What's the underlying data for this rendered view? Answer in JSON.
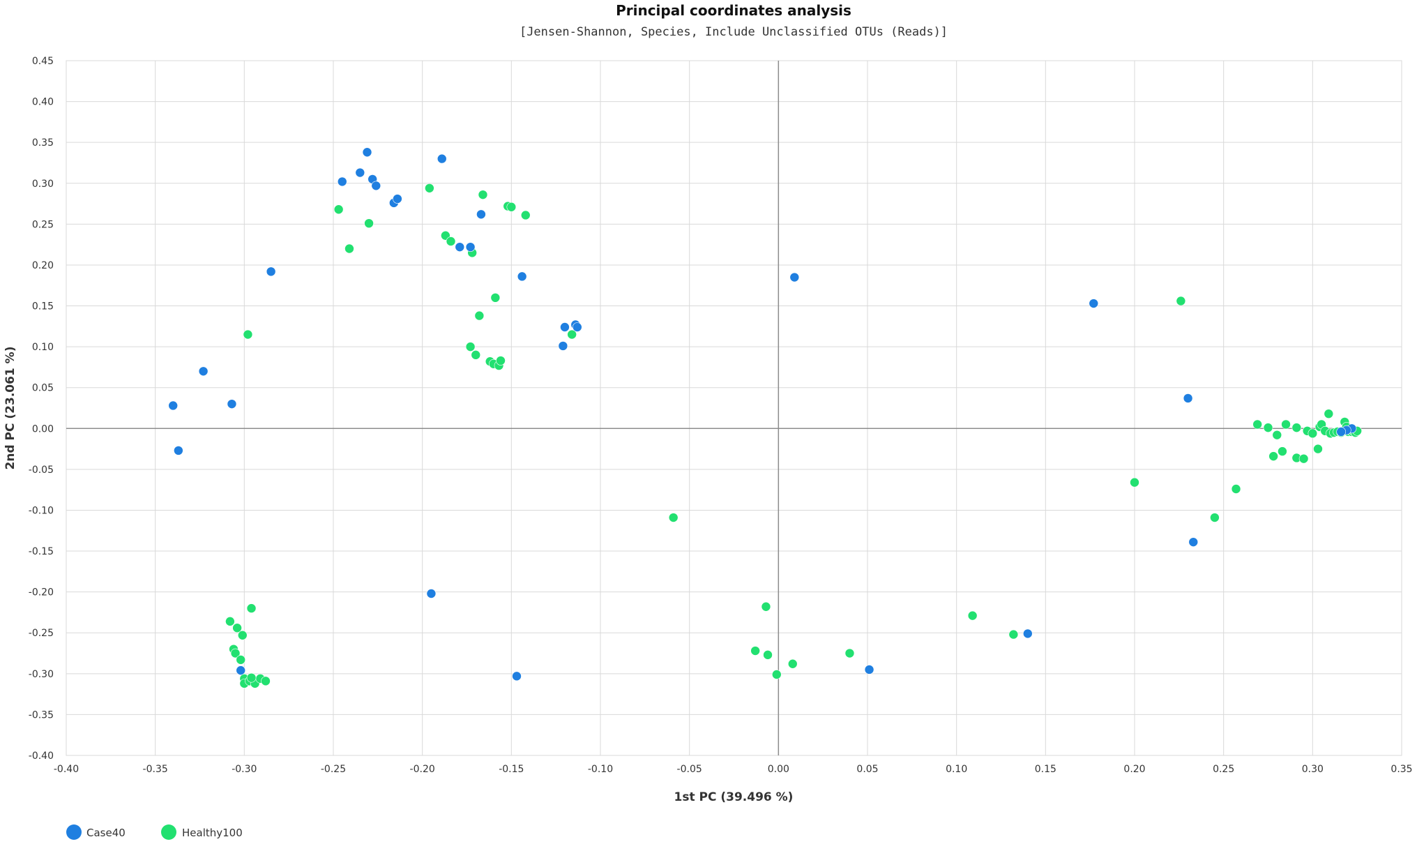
{
  "chart_data": {
    "type": "scatter",
    "title": "Principal coordinates analysis",
    "subtitle": "[Jensen-Shannon, Species, Include Unclassified OTUs (Reads)]",
    "xlabel": "1st PC (39.496 %)",
    "ylabel": "2nd PC (23.061 %)",
    "xlim": [
      -0.4,
      0.35
    ],
    "ylim": [
      -0.4,
      0.45
    ],
    "x_ticks": [
      "-0.40",
      "-0.35",
      "-0.30",
      "-0.25",
      "-0.20",
      "-0.15",
      "-0.10",
      "-0.05",
      "0.00",
      "0.05",
      "0.10",
      "0.15",
      "0.20",
      "0.25",
      "0.30",
      "0.35"
    ],
    "y_ticks": [
      "0.45",
      "0.40",
      "0.35",
      "0.30",
      "0.25",
      "0.20",
      "0.15",
      "0.10",
      "0.05",
      "0.00",
      "-0.05",
      "-0.10",
      "-0.15",
      "-0.20",
      "-0.25",
      "-0.30",
      "-0.35",
      "-0.40"
    ],
    "grid": true,
    "legend_position": "bottom-left",
    "series": [
      {
        "name": "Case40",
        "color": "#1f7fe0",
        "points": [
          [
            -0.34,
            0.028
          ],
          [
            -0.337,
            -0.027
          ],
          [
            -0.323,
            0.07
          ],
          [
            -0.307,
            0.03
          ],
          [
            -0.285,
            0.192
          ],
          [
            -0.302,
            -0.296
          ],
          [
            -0.245,
            0.302
          ],
          [
            -0.231,
            0.338
          ],
          [
            -0.235,
            0.313
          ],
          [
            -0.228,
            0.305
          ],
          [
            -0.226,
            0.297
          ],
          [
            -0.216,
            0.276
          ],
          [
            -0.214,
            0.281
          ],
          [
            -0.189,
            0.33
          ],
          [
            -0.179,
            0.222
          ],
          [
            -0.173,
            0.222
          ],
          [
            -0.167,
            0.262
          ],
          [
            -0.144,
            0.186
          ],
          [
            -0.195,
            -0.202
          ],
          [
            -0.147,
            -0.303
          ],
          [
            -0.12,
            0.124
          ],
          [
            -0.121,
            0.101
          ],
          [
            -0.114,
            0.127
          ],
          [
            -0.113,
            0.124
          ],
          [
            0.009,
            0.185
          ],
          [
            0.051,
            -0.295
          ],
          [
            0.14,
            -0.251
          ],
          [
            0.177,
            0.153
          ],
          [
            0.23,
            0.037
          ],
          [
            0.233,
            -0.139
          ],
          [
            0.322,
            0.0
          ],
          [
            0.319,
            -0.002
          ],
          [
            0.316,
            -0.004
          ]
        ]
      },
      {
        "name": "Healthy100",
        "color": "#22e070",
        "points": [
          [
            -0.247,
            0.268
          ],
          [
            -0.241,
            0.22
          ],
          [
            -0.23,
            0.251
          ],
          [
            -0.196,
            0.294
          ],
          [
            -0.187,
            0.236
          ],
          [
            -0.184,
            0.229
          ],
          [
            -0.172,
            0.215
          ],
          [
            -0.166,
            0.286
          ],
          [
            -0.152,
            0.272
          ],
          [
            -0.15,
            0.271
          ],
          [
            -0.142,
            0.261
          ],
          [
            -0.159,
            0.16
          ],
          [
            -0.168,
            0.138
          ],
          [
            -0.116,
            0.115
          ],
          [
            -0.173,
            0.1
          ],
          [
            -0.17,
            0.09
          ],
          [
            -0.162,
            0.082
          ],
          [
            -0.16,
            0.079
          ],
          [
            -0.157,
            0.077
          ],
          [
            -0.156,
            0.083
          ],
          [
            -0.298,
            0.115
          ],
          [
            -0.296,
            -0.22
          ],
          [
            -0.308,
            -0.236
          ],
          [
            -0.304,
            -0.244
          ],
          [
            -0.301,
            -0.253
          ],
          [
            -0.306,
            -0.27
          ],
          [
            -0.305,
            -0.275
          ],
          [
            -0.302,
            -0.283
          ],
          [
            -0.3,
            -0.306
          ],
          [
            -0.3,
            -0.312
          ],
          [
            -0.297,
            -0.309
          ],
          [
            -0.294,
            -0.312
          ],
          [
            -0.291,
            -0.306
          ],
          [
            -0.288,
            -0.309
          ],
          [
            -0.296,
            -0.305
          ],
          [
            -0.059,
            -0.109
          ],
          [
            -0.007,
            -0.218
          ],
          [
            -0.013,
            -0.272
          ],
          [
            -0.006,
            -0.277
          ],
          [
            -0.001,
            -0.301
          ],
          [
            0.008,
            -0.288
          ],
          [
            0.04,
            -0.275
          ],
          [
            0.109,
            -0.229
          ],
          [
            0.132,
            -0.252
          ],
          [
            0.2,
            -0.066
          ],
          [
            0.226,
            0.156
          ],
          [
            0.245,
            -0.109
          ],
          [
            0.257,
            -0.074
          ],
          [
            0.269,
            0.005
          ],
          [
            0.275,
            0.001
          ],
          [
            0.278,
            -0.034
          ],
          [
            0.28,
            -0.008
          ],
          [
            0.283,
            -0.028
          ],
          [
            0.285,
            0.005
          ],
          [
            0.291,
            0.001
          ],
          [
            0.291,
            -0.036
          ],
          [
            0.295,
            -0.037
          ],
          [
            0.297,
            -0.003
          ],
          [
            0.3,
            -0.006
          ],
          [
            0.303,
            -0.025
          ],
          [
            0.304,
            0.002
          ],
          [
            0.305,
            0.005
          ],
          [
            0.307,
            -0.003
          ],
          [
            0.309,
            0.018
          ],
          [
            0.31,
            -0.006
          ],
          [
            0.312,
            -0.005
          ],
          [
            0.314,
            -0.004
          ],
          [
            0.316,
            -0.005
          ],
          [
            0.318,
            0.008
          ],
          [
            0.319,
            0.002
          ],
          [
            0.32,
            -0.004
          ],
          [
            0.321,
            -0.002
          ],
          [
            0.322,
            -0.004
          ],
          [
            0.323,
            -0.003
          ],
          [
            0.324,
            -0.005
          ],
          [
            0.325,
            -0.003
          ]
        ]
      }
    ]
  }
}
